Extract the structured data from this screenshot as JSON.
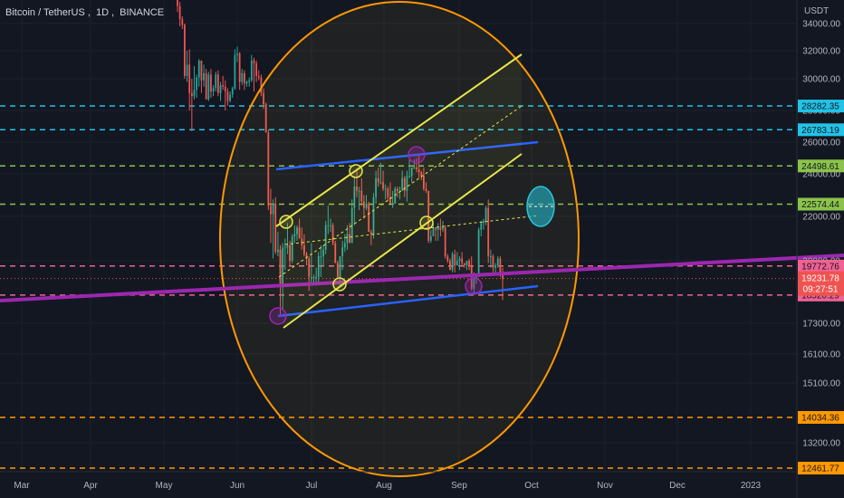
{
  "header": {
    "symbol": "Bitcoin / TetherUS",
    "interval": "1D",
    "exchange": "BINANCE",
    "currency": "USDT"
  },
  "colors": {
    "background": "#131722",
    "up": "#26a69a",
    "down": "#ef5350",
    "cyan": "#22c3e6",
    "green": "#8bc34a",
    "pink": "#f06292",
    "purple": "#9c27b0",
    "orange": "#ff9800",
    "yellow": "#e6e64b",
    "blue": "#2962ff",
    "teal_circle": "#26c6da",
    "zone": "#3d3a1c"
  },
  "chart_data": {
    "type": "candlestick",
    "x_axis_labels": [
      "Mar",
      "Apr",
      "May",
      "Jun",
      "Jul",
      "Aug",
      "Sep",
      "Oct",
      "Nov",
      "Dec",
      "2023"
    ],
    "y_axis_ticks": [
      34000,
      32000,
      30000,
      28000,
      26000,
      24000,
      22000,
      20000,
      17300,
      16100,
      15100,
      13200
    ],
    "y_axis_tick_labels": [
      "34000.00",
      "32000.00",
      "30000.00",
      "28000.00",
      "26000.00",
      "24000.00",
      "22000.00",
      "20000.00",
      "17300.00",
      "16100.00",
      "15100.00",
      "13200.00"
    ],
    "horizontal_levels": [
      {
        "value": 28282.35,
        "label": "28282.35",
        "color": "#22c3e6",
        "style": "dashed"
      },
      {
        "value": 26783.19,
        "label": "26783.19",
        "color": "#22c3e6",
        "style": "dashed"
      },
      {
        "value": 24498.61,
        "label": "24498.61",
        "color": "#8bc34a",
        "style": "dashed"
      },
      {
        "value": 22574.44,
        "label": "22574.44",
        "color": "#8bc34a",
        "style": "dashed"
      },
      {
        "value": 19772.76,
        "label": "19772.76",
        "color": "#f06292",
        "style": "dashed"
      },
      {
        "value": 18520.29,
        "label": "18520.29",
        "color": "#f06292",
        "style": "dashed"
      },
      {
        "value": 14034.36,
        "label": "14034.36",
        "color": "#ff9800",
        "style": "dashed"
      },
      {
        "value": 12461.77,
        "label": "12461.77",
        "color": "#ff9800",
        "style": "dashed"
      }
    ],
    "current_price": {
      "value": 19231.78,
      "label": "19231.78",
      "countdown": "09:27:51"
    },
    "support_zone": {
      "from": 12461.77,
      "to": 14034.36
    },
    "candles": [
      [
        "May 06",
        36500,
        36700,
        34800,
        35200
      ],
      [
        "May 07",
        35200,
        35500,
        33800,
        34300
      ],
      [
        "May 08",
        34300,
        34500,
        33600,
        33900
      ],
      [
        "May 09",
        33900,
        34000,
        30000,
        30200
      ],
      [
        "May 10",
        30200,
        32000,
        29800,
        31000
      ],
      [
        "May 11",
        31000,
        32100,
        28000,
        29100
      ],
      [
        "May 12",
        29100,
        30000,
        26700,
        28900
      ],
      [
        "May 13",
        28900,
        30900,
        28700,
        29300
      ],
      [
        "May 14",
        29300,
        30300,
        28800,
        30100
      ],
      [
        "May 15",
        30100,
        31400,
        29500,
        31300
      ],
      [
        "May 16",
        31300,
        31300,
        29100,
        29900
      ],
      [
        "May 17",
        29900,
        31000,
        29500,
        30400
      ],
      [
        "May 18",
        30400,
        30700,
        28700,
        28700
      ],
      [
        "May 19",
        28700,
        30500,
        28600,
        30300
      ],
      [
        "May 20",
        30300,
        30700,
        28800,
        29200
      ],
      [
        "May 21",
        29200,
        29600,
        28900,
        29400
      ],
      [
        "May 22",
        29400,
        30500,
        29200,
        30300
      ],
      [
        "May 23",
        30300,
        30600,
        28900,
        29100
      ],
      [
        "May 24",
        29100,
        29800,
        28600,
        29600
      ],
      [
        "May 25",
        29600,
        30200,
        29300,
        29500
      ],
      [
        "May 26",
        29500,
        29900,
        28000,
        29200
      ],
      [
        "May 27",
        29200,
        29400,
        28300,
        28600
      ],
      [
        "May 28",
        28600,
        29200,
        28500,
        29000
      ],
      [
        "May 29",
        29000,
        29500,
        28800,
        29400
      ],
      [
        "May 30",
        29400,
        32100,
        29300,
        31700
      ],
      [
        "May 31",
        31700,
        32300,
        31200,
        31800
      ],
      [
        "Jun 01",
        31800,
        31900,
        29300,
        29800
      ],
      [
        "Jun 02",
        29800,
        30700,
        29600,
        30400
      ],
      [
        "Jun 03",
        30400,
        30600,
        29300,
        29700
      ],
      [
        "Jun 04",
        29700,
        29900,
        29500,
        29800
      ],
      [
        "Jun 05",
        29800,
        30100,
        29500,
        29900
      ],
      [
        "Jun 06",
        29900,
        31700,
        29800,
        31300
      ],
      [
        "Jun 07",
        31300,
        31500,
        29200,
        31100
      ],
      [
        "Jun 08",
        31100,
        31300,
        29800,
        30200
      ],
      [
        "Jun 09",
        30200,
        30600,
        29900,
        30100
      ],
      [
        "Jun 10",
        30100,
        30300,
        28900,
        29100
      ],
      [
        "Jun 11",
        29100,
        29400,
        28100,
        28400
      ],
      [
        "Jun 12",
        28400,
        28500,
        26600,
        26600
      ],
      [
        "Jun 13",
        26600,
        26800,
        22300,
        22500
      ],
      [
        "Jun 14",
        22500,
        23300,
        20800,
        22100
      ],
      [
        "Jun 15",
        22100,
        22800,
        20100,
        22600
      ],
      [
        "Jun 16",
        22600,
        22900,
        20300,
        20400
      ],
      [
        "Jun 17",
        20400,
        21300,
        20200,
        20500
      ],
      [
        "Jun 18",
        20500,
        20700,
        17600,
        19000
      ],
      [
        "Jun 19",
        19000,
        20800,
        17900,
        20600
      ],
      [
        "Jun 20",
        20600,
        21000,
        19600,
        20600
      ],
      [
        "Jun 21",
        20600,
        21700,
        20300,
        20700
      ],
      [
        "Jun 22",
        20700,
        20900,
        19800,
        20000
      ],
      [
        "Jun 23",
        20000,
        21200,
        19900,
        21100
      ],
      [
        "Jun 24",
        21100,
        21600,
        20800,
        21200
      ],
      [
        "Jun 25",
        21200,
        21600,
        20900,
        21500
      ],
      [
        "Jun 26",
        21500,
        21900,
        21000,
        21000
      ],
      [
        "Jun 27",
        21000,
        21500,
        20500,
        20700
      ],
      [
        "Jun 28",
        20700,
        21200,
        20200,
        20300
      ],
      [
        "Jun 29",
        20300,
        20400,
        19800,
        20100
      ],
      [
        "Jun 30",
        20100,
        20200,
        18700,
        19300
      ],
      [
        "Jul 01",
        19300,
        20800,
        19000,
        19300
      ],
      [
        "Jul 02",
        19300,
        19400,
        19000,
        19300
      ],
      [
        "Jul 03",
        19300,
        19700,
        19000,
        19300
      ],
      [
        "Jul 04",
        19300,
        20400,
        19000,
        20200
      ],
      [
        "Jul 05",
        20200,
        20700,
        19300,
        20200
      ],
      [
        "Jul 06",
        20200,
        20700,
        19800,
        20500
      ],
      [
        "Jul 07",
        20500,
        21800,
        20300,
        21600
      ],
      [
        "Jul 08",
        21600,
        22500,
        21200,
        21600
      ],
      [
        "Jul 09",
        21600,
        21900,
        21300,
        21600
      ],
      [
        "Jul 10",
        21600,
        21700,
        20700,
        20800
      ],
      [
        "Jul 11",
        20800,
        20900,
        19900,
        19900
      ],
      [
        "Jul 12",
        19900,
        20000,
        19200,
        19300
      ],
      [
        "Jul 13",
        19300,
        20200,
        18900,
        20200
      ],
      [
        "Jul 14",
        20200,
        20900,
        19600,
        20600
      ],
      [
        "Jul 15",
        20600,
        21200,
        20400,
        20800
      ],
      [
        "Jul 16",
        20800,
        21600,
        20500,
        21200
      ],
      [
        "Jul 17",
        21200,
        21700,
        20800,
        20800
      ],
      [
        "Jul 18",
        20800,
        22800,
        20800,
        22400
      ],
      [
        "Jul 19",
        22400,
        23900,
        21600,
        23400
      ],
      [
        "Jul 20",
        23400,
        24300,
        22900,
        23200
      ],
      [
        "Jul 21",
        23200,
        23400,
        22300,
        23200
      ],
      [
        "Jul 22",
        23200,
        23800,
        22500,
        22700
      ],
      [
        "Jul 23",
        22700,
        23000,
        21900,
        22400
      ],
      [
        "Jul 24",
        22400,
        23000,
        22300,
        22600
      ],
      [
        "Jul 25",
        22600,
        22700,
        21300,
        21300
      ],
      [
        "Jul 26",
        21300,
        21400,
        20700,
        21200
      ],
      [
        "Jul 27",
        21200,
        23100,
        21000,
        22900
      ],
      [
        "Jul 28",
        22900,
        24200,
        22600,
        23800
      ],
      [
        "Jul 29",
        23800,
        24400,
        23400,
        23600
      ],
      [
        "Jul 30",
        23600,
        24700,
        23500,
        23600
      ],
      [
        "Jul 31",
        23600,
        24200,
        23200,
        23300
      ],
      [
        "Aug 01",
        23300,
        23500,
        22800,
        23300
      ],
      [
        "Aug 02",
        23300,
        23400,
        22700,
        22900
      ],
      [
        "Aug 03",
        22900,
        23600,
        22700,
        22600
      ],
      [
        "Aug 04",
        22600,
        23200,
        22400,
        22600
      ],
      [
        "Aug 05",
        22600,
        23400,
        22600,
        23300
      ],
      [
        "Aug 06",
        23300,
        23400,
        22900,
        23200
      ],
      [
        "Aug 07",
        23200,
        23400,
        22800,
        23200
      ],
      [
        "Aug 08",
        23200,
        24200,
        23200,
        23800
      ],
      [
        "Aug 09",
        23800,
        23900,
        22900,
        23200
      ],
      [
        "Aug 10",
        23200,
        24200,
        22700,
        23900
      ],
      [
        "Aug 11",
        23900,
        24900,
        23800,
        23900
      ],
      [
        "Aug 12",
        23900,
        24400,
        23600,
        24400
      ],
      [
        "Aug 13",
        24400,
        24900,
        24300,
        24400
      ],
      [
        "Aug 14",
        24400,
        25000,
        24100,
        24300
      ],
      [
        "Aug 15",
        24300,
        25200,
        23800,
        24100
      ],
      [
        "Aug 16",
        24100,
        24200,
        23700,
        23900
      ],
      [
        "Aug 17",
        23900,
        24400,
        23200,
        23300
      ],
      [
        "Aug 18",
        23300,
        23600,
        23100,
        23200
      ],
      [
        "Aug 19",
        23200,
        23200,
        20800,
        20900
      ],
      [
        "Aug 20",
        20900,
        21400,
        20800,
        21100
      ],
      [
        "Aug 21",
        21100,
        21700,
        21100,
        21500
      ],
      [
        "Aug 22",
        21500,
        21500,
        20900,
        21400
      ],
      [
        "Aug 23",
        21400,
        21700,
        20900,
        21500
      ],
      [
        "Aug 24",
        21500,
        21900,
        21100,
        21400
      ],
      [
        "Aug 25",
        21400,
        21800,
        21300,
        21500
      ],
      [
        "Aug 26",
        21500,
        21600,
        20100,
        20200
      ],
      [
        "Aug 27",
        20200,
        20300,
        19900,
        20000
      ],
      [
        "Aug 28",
        20000,
        20100,
        19600,
        19600
      ],
      [
        "Aug 29",
        19600,
        20400,
        19500,
        20300
      ],
      [
        "Aug 30",
        20300,
        20500,
        19500,
        19800
      ],
      [
        "Aug 31",
        19800,
        20400,
        19800,
        20000
      ],
      [
        "Sep 01",
        20000,
        20200,
        19600,
        20100
      ],
      [
        "Sep 02",
        20100,
        20400,
        19800,
        19900
      ],
      [
        "Sep 03",
        19900,
        19900,
        19700,
        19800
      ],
      [
        "Sep 04",
        19800,
        20000,
        19600,
        20000
      ],
      [
        "Sep 05",
        20000,
        20100,
        19600,
        19800
      ],
      [
        "Sep 06",
        19800,
        20200,
        18700,
        18800
      ],
      [
        "Sep 07",
        18800,
        19500,
        18600,
        19300
      ],
      [
        "Sep 08",
        19300,
        19400,
        19000,
        19300
      ],
      [
        "Sep 09",
        19300,
        21500,
        19300,
        21400
      ],
      [
        "Sep 10",
        21400,
        21800,
        21100,
        21700
      ],
      [
        "Sep 11",
        21700,
        21900,
        21400,
        21800
      ],
      [
        "Sep 12",
        21800,
        22500,
        21600,
        22400
      ],
      [
        "Sep 13",
        22400,
        22800,
        19900,
        20200
      ],
      [
        "Sep 14",
        20200,
        20500,
        19700,
        20200
      ],
      [
        "Sep 15",
        20200,
        20300,
        19500,
        19700
      ],
      [
        "Sep 16",
        19700,
        19900,
        19500,
        19800
      ],
      [
        "Sep 17",
        19800,
        20200,
        19700,
        20100
      ],
      [
        "Sep 18",
        20100,
        20200,
        19300,
        19400
      ],
      [
        "Sep 19",
        19400,
        19700,
        18300,
        19231.78
      ]
    ]
  }
}
